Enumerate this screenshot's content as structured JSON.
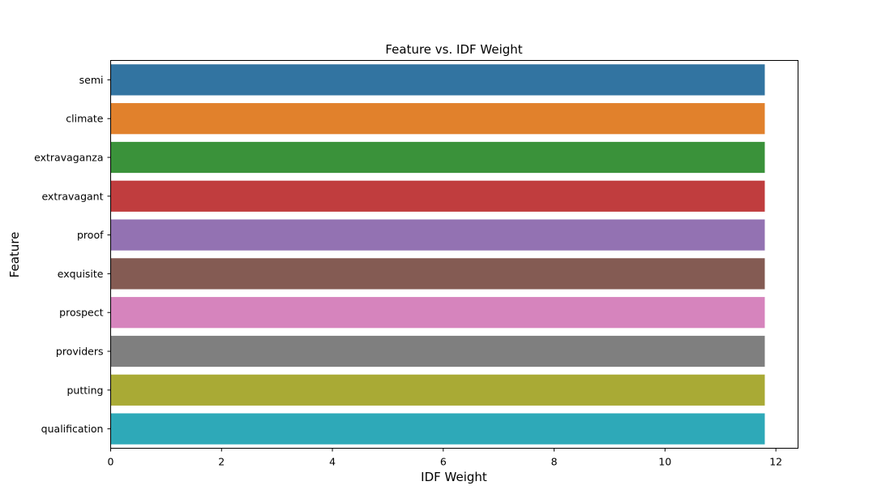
{
  "chart_data": {
    "type": "bar",
    "orientation": "horizontal",
    "title": "Feature vs. IDF Weight",
    "xlabel": "IDF Weight",
    "ylabel": "Feature",
    "categories": [
      "semi",
      "climate",
      "extravaganza",
      "extravagant",
      "proof",
      "exquisite",
      "prospect",
      "providers",
      "putting",
      "qualification"
    ],
    "values": [
      11.8,
      11.8,
      11.8,
      11.8,
      11.8,
      11.8,
      11.8,
      11.8,
      11.8,
      11.8
    ],
    "colors": [
      "#3274a1",
      "#e1812c",
      "#3a923a",
      "#c03d3e",
      "#9372b2",
      "#845b53",
      "#d684bd",
      "#7f7f7f",
      "#a9aa35",
      "#2ea9b8"
    ],
    "xlim": [
      0,
      12.4
    ],
    "xticks": [
      "0",
      "2",
      "4",
      "6",
      "8",
      "10",
      "12"
    ],
    "grid": false,
    "legend": "none"
  }
}
